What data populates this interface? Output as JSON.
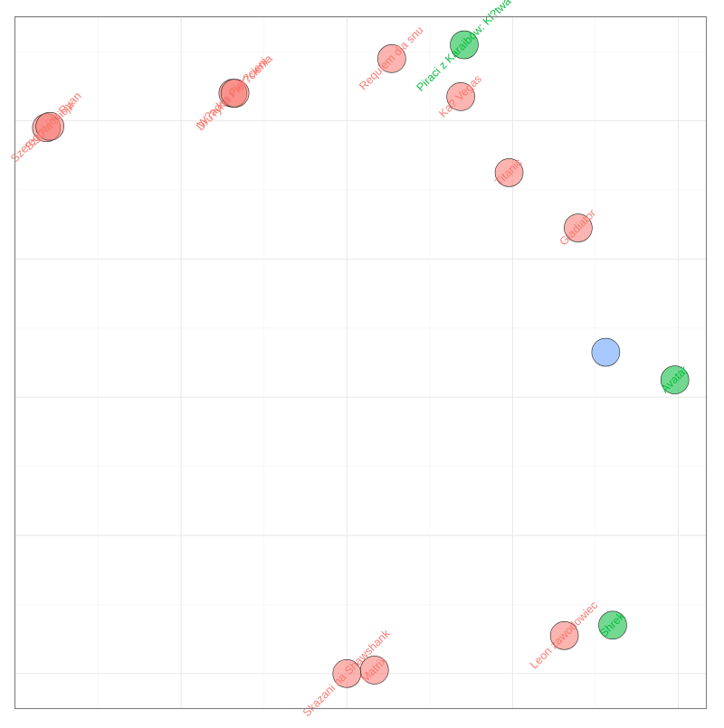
{
  "colors": {
    "red": "#F8766D",
    "green": "#00BA38",
    "blue": "#619CFF"
  },
  "chart_data": {
    "type": "scatter",
    "title": "",
    "xlabel": "",
    "ylabel": "",
    "xlim": [
      0,
      10
    ],
    "ylim": [
      0,
      10
    ],
    "grid": true,
    "legend": "none",
    "points": [
      {
        "label": "Szeregowiec Ryan",
        "x": 0.45,
        "y": 8.4,
        "color": "red"
      },
      {
        "label": "Sza?la Misja",
        "x": 0.5,
        "y": 8.42,
        "color": "red"
      },
      {
        "label": "W?adca Pier?cieni",
        "x": 3.15,
        "y": 8.9,
        "color": "red"
      },
      {
        "label": "Dru?yna Pier?cienia",
        "x": 3.18,
        "y": 8.9,
        "color": "red"
      },
      {
        "label": "Requiem dla snu",
        "x": 5.45,
        "y": 9.4,
        "color": "red"
      },
      {
        "label": "Piraci z Karaibów: Kl?twa",
        "x": 6.5,
        "y": 9.6,
        "color": "green"
      },
      {
        "label": "Ka? Vegas",
        "x": 6.45,
        "y": 8.85,
        "color": "red"
      },
      {
        "label": "Titanic",
        "x": 7.15,
        "y": 7.75,
        "color": "red"
      },
      {
        "label": "Gladiator",
        "x": 8.15,
        "y": 6.95,
        "color": "red"
      },
      {
        "label": "",
        "x": 8.55,
        "y": 5.15,
        "color": "blue"
      },
      {
        "label": "Avatar",
        "x": 9.55,
        "y": 4.75,
        "color": "green"
      },
      {
        "label": "Leon zawodowiec",
        "x": 7.95,
        "y": 1.05,
        "color": "red"
      },
      {
        "label": "Shrek",
        "x": 8.65,
        "y": 1.2,
        "color": "green"
      },
      {
        "label": "Skazani na Shawshank",
        "x": 4.8,
        "y": 0.5,
        "color": "red"
      },
      {
        "label": "Matrix",
        "x": 5.2,
        "y": 0.55,
        "color": "red"
      }
    ]
  }
}
